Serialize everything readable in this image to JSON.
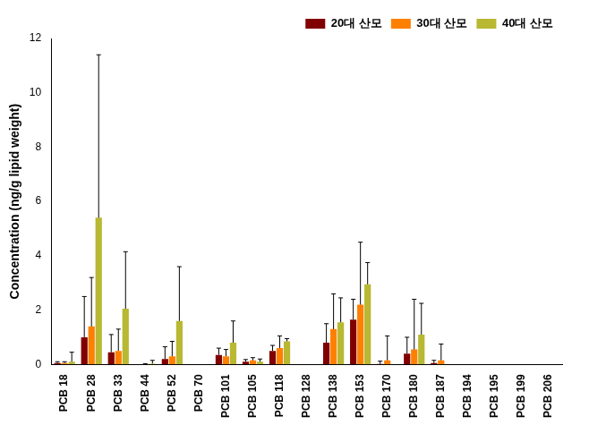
{
  "chart_data": {
    "type": "bar",
    "y_label": "Concentration (ng/g lipid weight)",
    "categories": [
      "PCB 18",
      "PCB 28",
      "PCB 33",
      "PCB 44",
      "PCB 52",
      "PCB 70",
      "PCB 101",
      "PCB 105",
      "PCB 118",
      "PCB 128",
      "PCB 138",
      "PCB 153",
      "PCB 170",
      "PCB 180",
      "PCB 187",
      "PCB 194",
      "PCB 195",
      "PCB 199",
      "PCB 206"
    ],
    "series": [
      {
        "name": "20대 산모",
        "color": "#800000",
        "values": [
          0.05,
          1.0,
          0.45,
          0,
          0.2,
          0,
          0.35,
          0.1,
          0.5,
          0,
          0.8,
          1.65,
          0.02,
          0.4,
          0.05,
          0,
          0,
          0,
          0
        ],
        "errors": [
          0.05,
          1.5,
          0.65,
          0,
          0.45,
          0,
          0.25,
          0.08,
          0.2,
          0,
          0.7,
          0.75,
          0.1,
          0.6,
          0.1,
          0,
          0,
          0,
          0
        ]
      },
      {
        "name": "30대 산모",
        "color": "#ff8000",
        "values": [
          0.05,
          1.4,
          0.5,
          0.01,
          0.3,
          0,
          0.3,
          0.15,
          0.6,
          0,
          1.3,
          2.2,
          0.15,
          0.55,
          0.15,
          0,
          0,
          0,
          0
        ],
        "errors": [
          0.05,
          1.8,
          0.8,
          0.02,
          0.55,
          0,
          0.25,
          0.1,
          0.45,
          0,
          1.3,
          2.3,
          0.9,
          1.85,
          0.6,
          0,
          0,
          0,
          0
        ]
      },
      {
        "name": "40대 산모",
        "color": "#b8b832",
        "values": [
          0.1,
          5.4,
          2.05,
          0.03,
          1.6,
          0,
          0.8,
          0.1,
          0.85,
          0,
          1.55,
          2.95,
          0,
          1.1,
          0,
          0,
          0,
          0,
          0
        ],
        "errors": [
          0.35,
          6.0,
          2.1,
          0.12,
          2.0,
          0,
          0.8,
          0.1,
          0.1,
          0,
          0.9,
          0.8,
          0,
          1.15,
          0,
          0,
          0,
          0,
          0
        ]
      }
    ],
    "ylim": [
      0,
      12
    ],
    "yticks": [
      0,
      2,
      4,
      6,
      8,
      10,
      12
    ],
    "grid": false,
    "legend": "upper right"
  }
}
